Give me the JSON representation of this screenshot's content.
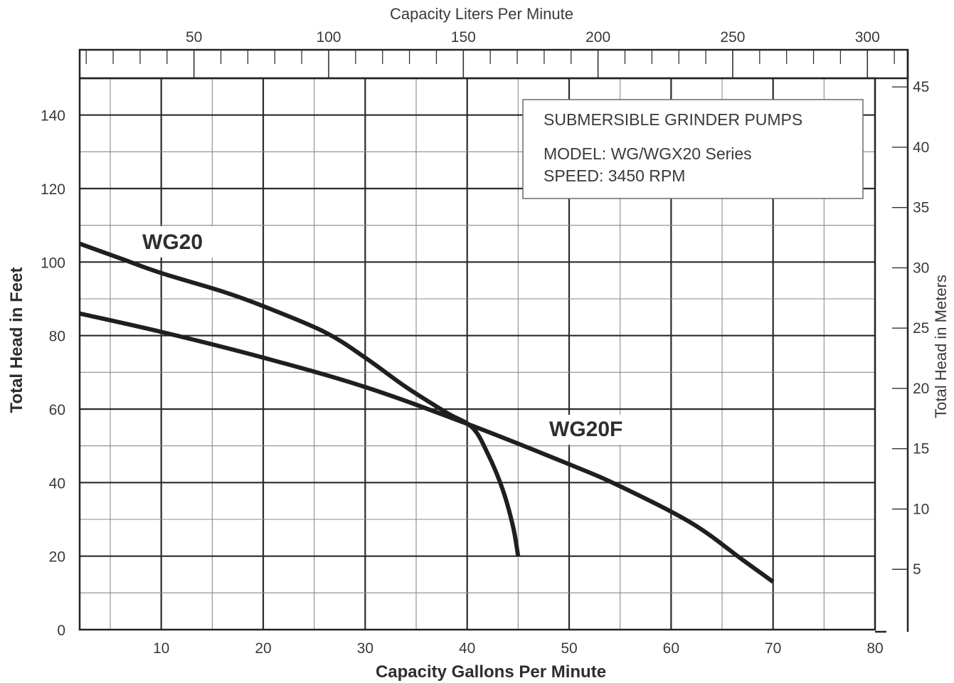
{
  "chart_data": {
    "type": "line",
    "xlabel": "Capacity Gallons Per Minute",
    "ylabel": "Total Head in Feet",
    "x2label": "Capacity Liters Per Minute",
    "y2label": "Total Head in Meters",
    "xlim": [
      2,
      80
    ],
    "ylim": [
      0,
      150
    ],
    "x_ticks": [
      "10",
      "20",
      "30",
      "40",
      "50",
      "60",
      "70",
      "80"
    ],
    "y_ticks": [
      "0",
      "20",
      "40",
      "60",
      "80",
      "100",
      "120",
      "140"
    ],
    "x2_ticks": [
      "50",
      "100",
      "150",
      "200",
      "250",
      "300"
    ],
    "y2_ticks": [
      "5",
      "10",
      "15",
      "20",
      "25",
      "30",
      "35",
      "40",
      "45"
    ],
    "grid": true,
    "legend_box": {
      "title": "SUBMERSIBLE GRINDER PUMPS",
      "model": "MODEL:  WG/WGX20 Series",
      "speed": "SPEED:  3450 RPM"
    },
    "series": [
      {
        "name": "WG20",
        "x": [
          2,
          6,
          10,
          16,
          20,
          26,
          30,
          34,
          38,
          40.5,
          42,
          43.5,
          44.5,
          45
        ],
        "y": [
          105,
          101,
          97,
          92,
          88,
          81,
          74,
          66,
          59,
          55,
          48,
          38,
          28,
          20
        ]
      },
      {
        "name": "WG20F",
        "x": [
          2,
          10,
          20,
          30,
          40,
          50,
          55,
          62,
          67,
          70
        ],
        "y": [
          86,
          81,
          74,
          66,
          56,
          45,
          39,
          29,
          19,
          13
        ]
      }
    ]
  }
}
